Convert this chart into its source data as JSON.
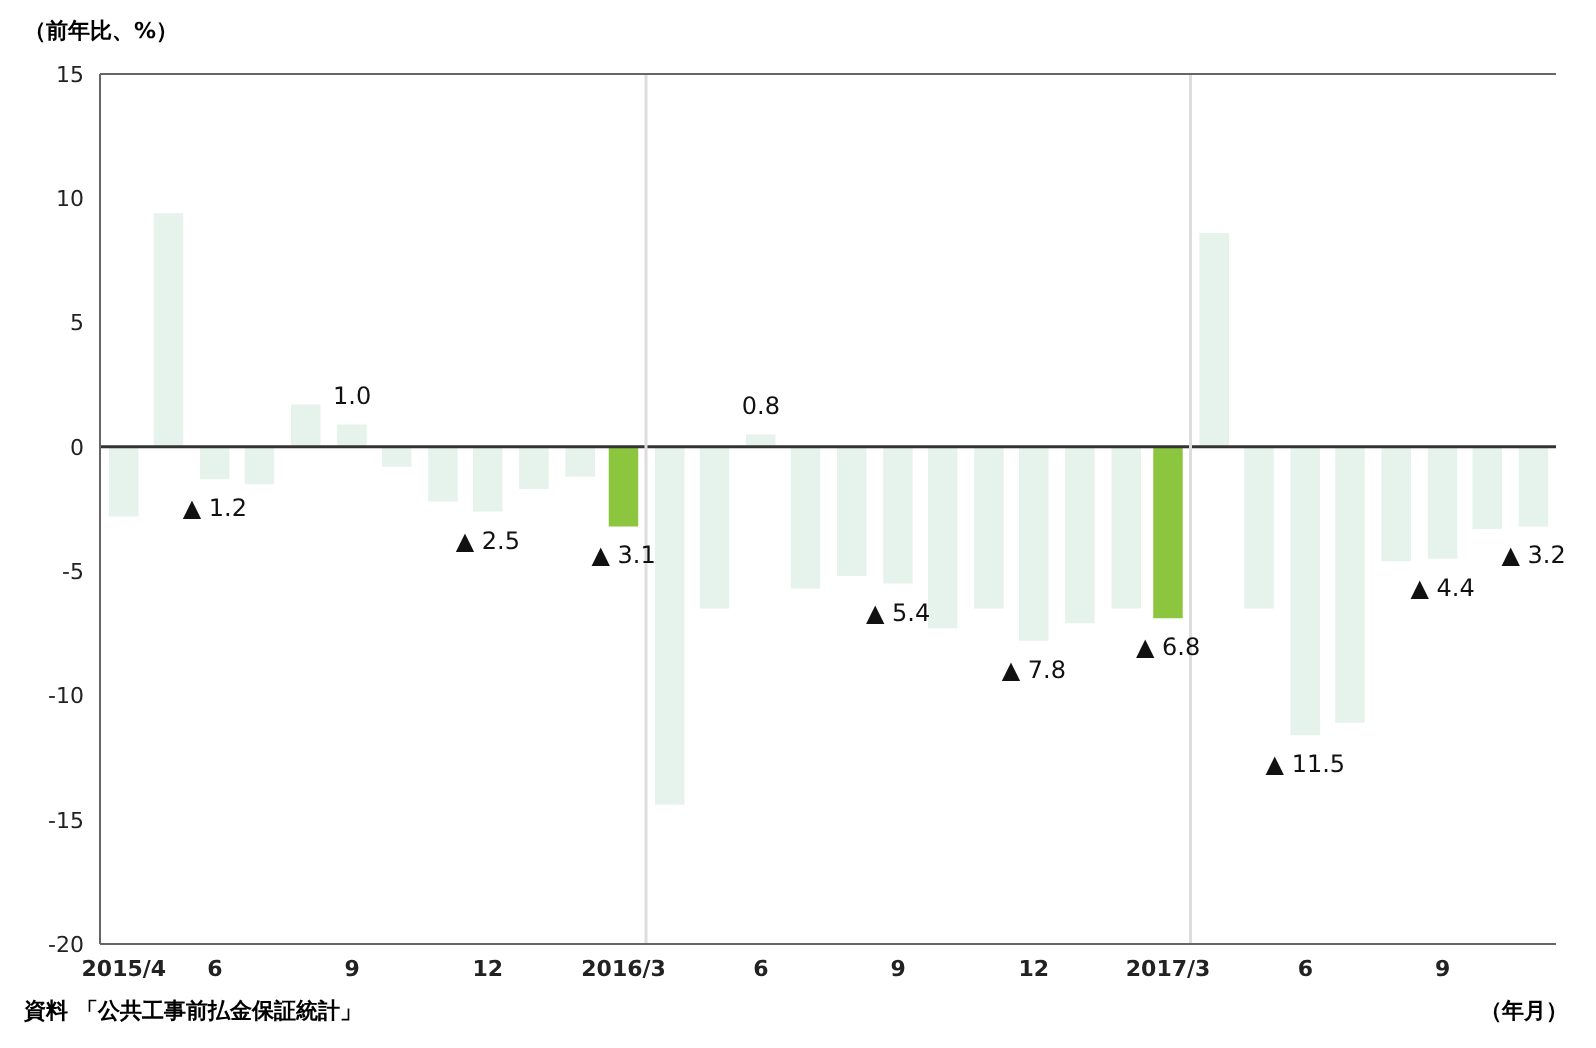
{
  "chart_data": {
    "type": "bar",
    "ylabel": "（前年比、%）",
    "xlabel": "（年月）",
    "x": [
      "2015-04",
      "2015-05",
      "2015-06",
      "2015-07",
      "2015-08",
      "2015-09",
      "2015-10",
      "2015-11",
      "2015-12",
      "2016-01",
      "2016-02",
      "2016-03",
      "2016-04",
      "2016-05",
      "2016-06",
      "2016-07",
      "2016-08",
      "2016-09",
      "2016-10",
      "2016-11",
      "2016-12",
      "2017-01",
      "2017-02",
      "2017-03",
      "2017-04",
      "2017-05",
      "2017-06",
      "2017-07",
      "2017-08",
      "2017-09",
      "2017-10",
      "2017-11"
    ],
    "values": [
      -2.8,
      9.4,
      -1.3,
      -1.5,
      1.7,
      0.9,
      -0.8,
      -2.2,
      -2.6,
      -1.7,
      -1.2,
      -3.2,
      -14.4,
      -6.5,
      0.5,
      -5.7,
      -5.2,
      -5.5,
      -7.3,
      -6.5,
      -7.8,
      -7.1,
      -6.5,
      -6.9,
      8.6,
      -6.5,
      -11.6,
      -11.1,
      -4.6,
      -4.5,
      -3.3,
      -3.2
    ],
    "colors": [
      "#e6f2ec",
      "#e6f2ec",
      "#e6f2ec",
      "#e6f2ec",
      "#e6f2ec",
      "#e6f2ec",
      "#e6f2ec",
      "#e6f2ec",
      "#e6f2ec",
      "#e6f2ec",
      "#e6f2ec",
      "#8cc63f",
      "#e6f2ec",
      "#e6f2ec",
      "#e6f2ec",
      "#e6f2ec",
      "#e6f2ec",
      "#e6f2ec",
      "#e6f2ec",
      "#e6f2ec",
      "#e6f2ec",
      "#e6f2ec",
      "#e6f2ec",
      "#8cc63f",
      "#e6f2ec",
      "#e6f2ec",
      "#e6f2ec",
      "#e6f2ec",
      "#e6f2ec",
      "#e6f2ec",
      "#e6f2ec",
      "#e6f2ec"
    ],
    "xlim": [
      "2015-03-16",
      "2017-11-16"
    ],
    "xticks": [
      {
        "value": "2015-04",
        "label": "2015/4"
      },
      {
        "value": "2015-06",
        "label": "6"
      },
      {
        "value": "2015-09",
        "label": "9"
      },
      {
        "value": "2015-12",
        "label": "12"
      },
      {
        "value": "2016-03",
        "label": "2016/3"
      },
      {
        "value": "2016-06",
        "label": "6"
      },
      {
        "value": "2016-09",
        "label": "9"
      },
      {
        "value": "2016-12",
        "label": "12"
      },
      {
        "value": "2017-03",
        "label": "2017/3"
      },
      {
        "value": "2017-06",
        "label": "6"
      },
      {
        "value": "2017-09",
        "label": "9"
      }
    ],
    "ylim": [
      -20,
      15
    ],
    "yticks": [
      -20,
      -15,
      -10,
      -5,
      0,
      5,
      10,
      15
    ],
    "grid": false,
    "ref_lines": [
      {
        "axis": "y",
        "value": 0,
        "color": "#333333"
      },
      {
        "axis": "x",
        "value": "2016-03-16",
        "color": "#dddddd"
      },
      {
        "axis": "x",
        "value": "2017-03-16",
        "color": "#dddddd"
      }
    ],
    "annotations": [
      {
        "text": "▲ 1.2",
        "x": "2015-06",
        "y": -1.3
      },
      {
        "text": "1.0",
        "x": "2015-09",
        "y": 0.9
      },
      {
        "text": "▲ 2.5",
        "x": "2015-12",
        "y": -2.6
      },
      {
        "text": "▲ 3.1",
        "x": "2016-03",
        "y": -3.2
      },
      {
        "text": "0.8",
        "x": "2016-06",
        "y": 0.5
      },
      {
        "text": "▲ 5.4",
        "x": "2016-09",
        "y": -5.5
      },
      {
        "text": "▲ 7.8",
        "x": "2016-12",
        "y": -7.8
      },
      {
        "text": "▲ 6.8",
        "x": "2017-03",
        "y": -6.9
      },
      {
        "text": "▲ 11.5",
        "x": "2017-06",
        "y": -11.6
      },
      {
        "text": "▲ 4.4",
        "x": "2017-09",
        "y": -4.5
      },
      {
        "text": "▲ 3.2",
        "x": "2017-11",
        "y": -3.2
      },
      "資料 「公共工事前払金保証統計」"
    ]
  }
}
